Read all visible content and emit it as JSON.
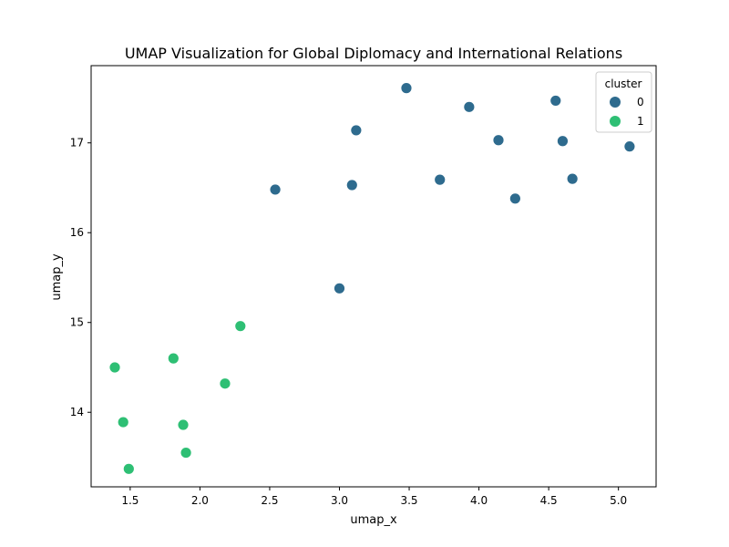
{
  "chart_data": {
    "type": "scatter",
    "title": "UMAP Visualization for Global Diplomacy and International Relations",
    "xlabel": "umap_x",
    "ylabel": "umap_y",
    "xlim": [
      1.22,
      5.27
    ],
    "ylim": [
      13.17,
      17.86
    ],
    "xticks": [
      1.5,
      2.0,
      2.5,
      3.0,
      3.5,
      4.0,
      4.5,
      5.0
    ],
    "xtick_labels": [
      "1.5",
      "2.0",
      "2.5",
      "3.0",
      "3.5",
      "4.0",
      "4.5",
      "5.0"
    ],
    "yticks": [
      14,
      15,
      16,
      17
    ],
    "ytick_labels": [
      "14",
      "15",
      "16",
      "17"
    ],
    "grid": false,
    "legend": {
      "title": "cluster",
      "placement": "top-right",
      "entries": [
        {
          "label": "0",
          "color": "#2e6b8e"
        },
        {
          "label": "1",
          "color": "#2ebf74"
        }
      ]
    },
    "series": [
      {
        "cluster": "0",
        "color": "#2e6b8e",
        "points": [
          {
            "x": 3.48,
            "y": 17.61
          },
          {
            "x": 3.93,
            "y": 17.4
          },
          {
            "x": 4.55,
            "y": 17.47
          },
          {
            "x": 3.12,
            "y": 17.14
          },
          {
            "x": 4.14,
            "y": 17.03
          },
          {
            "x": 4.6,
            "y": 17.02
          },
          {
            "x": 5.08,
            "y": 16.96
          },
          {
            "x": 2.54,
            "y": 16.48
          },
          {
            "x": 3.09,
            "y": 16.53
          },
          {
            "x": 3.72,
            "y": 16.59
          },
          {
            "x": 4.67,
            "y": 16.6
          },
          {
            "x": 4.26,
            "y": 16.38
          },
          {
            "x": 3.0,
            "y": 15.38
          }
        ]
      },
      {
        "cluster": "1",
        "color": "#2ebf74",
        "points": [
          {
            "x": 2.29,
            "y": 14.96
          },
          {
            "x": 1.81,
            "y": 14.6
          },
          {
            "x": 1.39,
            "y": 14.5
          },
          {
            "x": 2.18,
            "y": 14.32
          },
          {
            "x": 1.45,
            "y": 13.89
          },
          {
            "x": 1.88,
            "y": 13.86
          },
          {
            "x": 1.9,
            "y": 13.55
          },
          {
            "x": 1.49,
            "y": 13.37
          }
        ]
      }
    ]
  }
}
